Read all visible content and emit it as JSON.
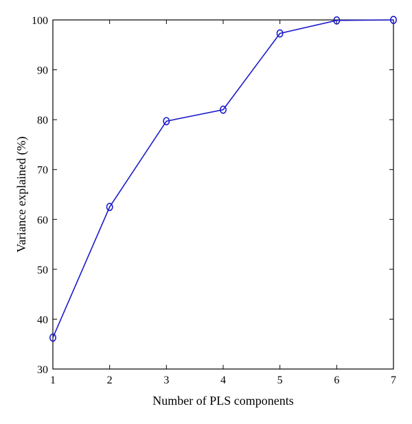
{
  "chart_data": {
    "type": "line",
    "title": "",
    "xlabel": "Number of PLS components",
    "ylabel": "Variance explained (%)",
    "xlim": [
      1,
      7
    ],
    "ylim": [
      30,
      100
    ],
    "x_ticks": [
      1,
      2,
      3,
      4,
      5,
      6,
      7
    ],
    "y_ticks": [
      30,
      40,
      50,
      60,
      70,
      80,
      90,
      100
    ],
    "grid": false,
    "legend": "none",
    "colors": {
      "series": "#1a1acc",
      "axes": "#000000"
    },
    "series": [
      {
        "marker": "circle",
        "x": [
          1,
          2,
          3,
          4,
          5,
          6,
          7
        ],
        "values": [
          36.3,
          62.5,
          79.7,
          82.0,
          97.3,
          99.9,
          100.0
        ]
      }
    ]
  }
}
